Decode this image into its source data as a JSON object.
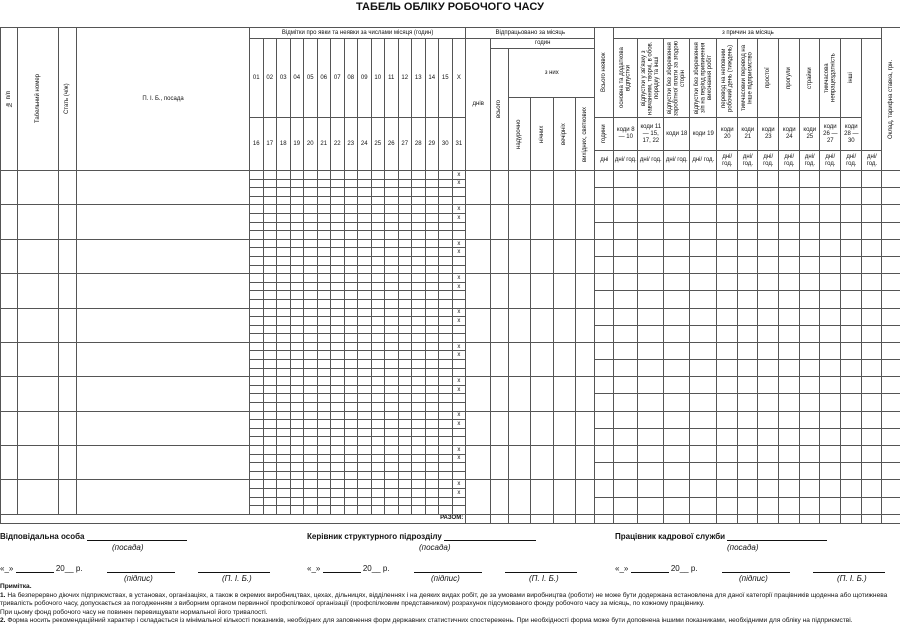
{
  "title": "ТАБЕЛЬ ОБЛІКУ РОБОЧОГО ЧАСУ",
  "header": {
    "num": "№ п/п",
    "tab_num": "Табельний номер",
    "sex": "Стать (ч/ж)",
    "name": "П. І. Б., посада",
    "marks": "Відмітки про явки та неявки за числами місяця (годин)",
    "days_row1": [
      "01",
      "02",
      "03",
      "04",
      "05",
      "06",
      "07",
      "08",
      "09",
      "10",
      "11",
      "12",
      "13",
      "14",
      "15",
      "Х"
    ],
    "days_row2": [
      "16",
      "17",
      "18",
      "19",
      "20",
      "21",
      "22",
      "23",
      "24",
      "25",
      "26",
      "27",
      "28",
      "29",
      "30",
      "31"
    ],
    "worked": "Відпрацьовано за місяць",
    "worked_days": "днів",
    "hours": "годин",
    "hours_total": "всього",
    "of_them": "з них",
    "of_them_cols": [
      "надурочно",
      "нічних",
      "вечірніх",
      "вихідних, святкових"
    ],
    "absent_total": "Всього неявок",
    "absent_hours": "години",
    "absent_days": "дні",
    "reasons": "з причин за місяць",
    "reason_cols": [
      {
        "desc": "основна та додаткова відпустки",
        "code": "коди 8 — 10"
      },
      {
        "desc": "відпустки у зв'язку з навчанням, творчі, в обов. порядку та інші",
        "code": "коди 11 — 15, 17, 22"
      },
      {
        "desc": "відпустки без збереження заробітної плати за згодою сторін",
        "code": "коди 18"
      },
      {
        "desc": "відпустки без збереження з/п на період припинення виконання робіт",
        "code": "коди 19"
      },
      {
        "desc": "перевод на неповний робочий день (тиждень)",
        "code": "коди 20"
      },
      {
        "desc": "тимчасовий перевод на інше підприємство",
        "code": "коди 21"
      },
      {
        "desc": "простої",
        "code": "коди 23"
      },
      {
        "desc": "прогули",
        "code": "коди 24"
      },
      {
        "desc": "страйки",
        "code": "коди 25"
      },
      {
        "desc": "тимчасова непрацездатність",
        "code": "коди 26 — 27"
      },
      {
        "desc": "інші",
        "code": "коди 28 — 30"
      }
    ],
    "days_hours": "дні/ год.",
    "salary": "Оклад, тарифна ставка, грн."
  },
  "body": {
    "x_mark": "х",
    "total": "РАЗОМ:"
  },
  "signatures": [
    {
      "role": "Відповідальна особа",
      "position": "(посада)",
      "date_open": "«_»",
      "year": "20__ р.",
      "sign": "(підпис)",
      "pib": "(П. І. Б.)"
    },
    {
      "role": "Керівник структурного підрозділу",
      "position": "(посада)",
      "date_open": "«_»",
      "year": "20__ р.",
      "sign": "(підпис)",
      "pib": "(П. І. Б.)"
    },
    {
      "role": "Працівник кадрової служби",
      "position": "(посада)",
      "date_open": "«_»",
      "year": "20__ р.",
      "sign": "(підпис)",
      "pib": "(П. І. Б.)"
    }
  ],
  "notes": {
    "heading": "Примітка.",
    "n1_num": "1.",
    "n1": "На безперервно діючих підприємствах, в установах, організаціях, а також в окремих виробництвах, цехах, дільницях, відділеннях і на деяких видах робіт, де за умовами виробництва (роботи) не може бути додержана встановлена для даної категорії працівників щоденна або щотижнева тривалість робочого часу, допускається за погодженням з виборним органом первинної профспілкової організації (профспілковим представником) розрахунок підсумованого фонду робочого часу за місяць, по кожному працівнику.",
    "n1b": "При цьому фонд робочого часу не повинен перевищувати нормальної його тривалості.",
    "n2_num": "2.",
    "n2": "Форма носить рекомендаційний характер і складається із мінімальної кількості показників, необхідних для заповнення форм державних статистичних спостережень. При необхідності форма може бути доповнена іншими показниками, необхідними для обліку на підприємстві."
  }
}
